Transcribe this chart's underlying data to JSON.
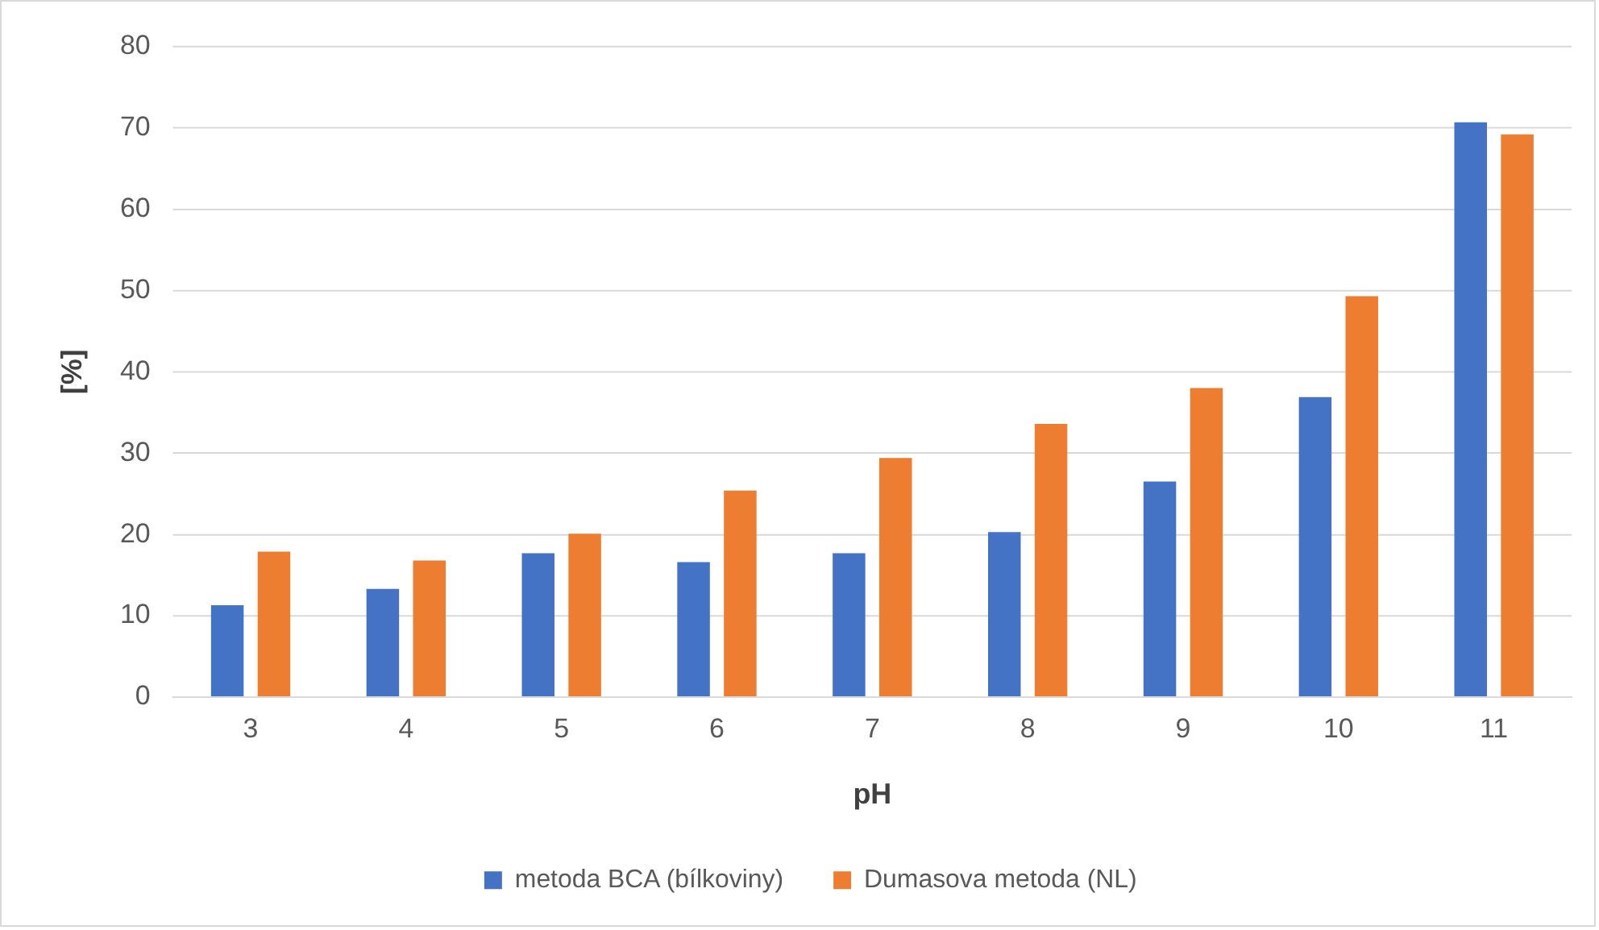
{
  "chart_data": {
    "type": "bar",
    "xlabel": "pH",
    "ylabel": "[%]",
    "categories": [
      "3",
      "4",
      "5",
      "6",
      "7",
      "8",
      "9",
      "10",
      "11"
    ],
    "series": [
      {
        "name": "metoda BCA (bílkoviny)",
        "color": "#4472c4",
        "values": [
          11.3,
          13.3,
          17.7,
          16.6,
          17.7,
          20.3,
          26.5,
          36.9,
          70.7
        ]
      },
      {
        "name": "Dumasova metoda (NL)",
        "color": "#ed7d31",
        "values": [
          17.9,
          16.8,
          20.1,
          25.4,
          29.4,
          33.6,
          38.0,
          49.3,
          69.2
        ]
      }
    ],
    "ylim": [
      0,
      80
    ],
    "yticks": [
      0,
      10,
      20,
      30,
      40,
      50,
      60,
      70,
      80
    ],
    "grid": "y",
    "legend": "bottom"
  }
}
